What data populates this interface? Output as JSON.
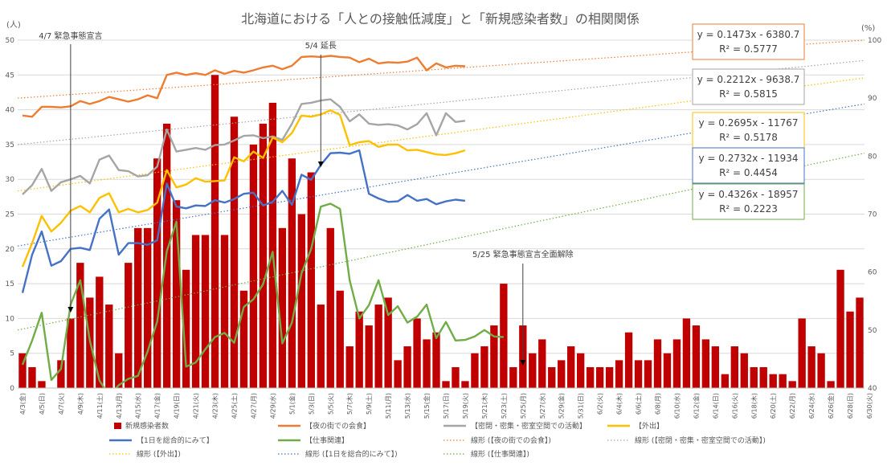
{
  "chart_data": {
    "type": "bar+line",
    "title": "北海道における「人との接触低減度」と「新規感染者数」の相関関係",
    "y_left_unit": "(人)",
    "y_right_unit": "(%)",
    "y_left_range": [
      0,
      50
    ],
    "y_left_ticks": [
      "0",
      "5",
      "10",
      "15",
      "20",
      "25",
      "30",
      "35",
      "40",
      "45",
      "50"
    ],
    "y_right_range": [
      40,
      100
    ],
    "y_right_ticks": [
      "40",
      "50",
      "60",
      "70",
      "80",
      "90",
      "100"
    ],
    "x_tick_labels": [
      "4/3(金)",
      "4/5(日)",
      "4/7(火)",
      "4/9(木)",
      "4/11(土)",
      "4/13(月)",
      "4/15(水)",
      "4/17(金)",
      "4/19(日)",
      "4/21(火)",
      "4/23(木)",
      "4/25(土)",
      "4/27(月)",
      "4/29(水)",
      "5/1(金)",
      "5/3(日)",
      "5/5(火)",
      "5/7(木)",
      "5/9(土)",
      "5/11(月)",
      "5/13(水)",
      "5/15(金)",
      "5/17(日)",
      "5/19(火)",
      "5/21(木)",
      "5/23(土)",
      "5/25(月)",
      "5/27(水)",
      "5/29(金)",
      "5/31(日)",
      "6/2(火)",
      "6/4(木)",
      "6/6(土)",
      "6/8(月)",
      "6/10(水)",
      "6/12(金)",
      "6/14(日)",
      "6/16(火)",
      "6/18(木)",
      "6/20(土)",
      "6/22(月)",
      "6/24(水)",
      "6/26(金)",
      "6/28(日)",
      "6/30(火)"
    ],
    "bars": {
      "name": "新規感染者数",
      "color": "#c00000",
      "values": [
        5,
        3,
        1,
        0,
        4,
        10,
        18,
        13,
        16,
        12,
        5,
        18,
        23,
        23,
        33,
        38,
        27,
        17,
        22,
        22,
        45,
        22,
        39,
        14,
        35,
        38,
        41,
        23,
        33,
        25,
        31,
        12,
        23,
        14,
        6,
        11,
        9,
        12,
        13,
        4,
        6,
        10,
        7,
        8,
        1,
        3,
        1,
        5,
        6,
        9,
        15,
        3,
        9,
        5,
        7,
        3,
        4,
        6,
        5,
        3,
        3,
        3,
        4,
        8,
        4,
        4,
        7,
        5,
        7,
        10,
        9,
        7,
        6,
        2,
        6,
        5,
        3,
        3,
        2,
        2,
        1,
        10,
        6,
        5,
        1,
        17,
        11,
        13
      ]
    },
    "series": [
      {
        "name": "【夜の街での会食】",
        "color": "#ed7d31",
        "values": [
          87,
          86.8,
          88.5,
          88.5,
          88.4,
          88.6,
          89.5,
          89,
          89.5,
          90.2,
          89.8,
          89.4,
          89.8,
          90.5,
          90,
          94,
          94.4,
          94,
          94.3,
          94,
          94.8,
          94.2,
          94.7,
          94.4,
          94.8,
          95.3,
          95.6,
          95,
          95.6,
          97.1,
          97.2,
          97.1,
          97.3,
          97.1,
          97,
          96.2,
          96.8,
          96,
          96.2,
          96.1,
          96.3,
          97,
          94.8,
          96,
          95.3,
          95.6,
          95.5
        ]
      },
      {
        "name": "【密閉・密集・密室空間での活動】",
        "color": "#a5a5a5",
        "values": [
          73.4,
          75,
          77.8,
          74,
          75.5,
          76,
          76.6,
          75.3,
          79.4,
          80.1,
          77.6,
          77.4,
          76.5,
          76.7,
          78.2,
          84.6,
          80.8,
          81.1,
          81.4,
          81.1,
          81.9,
          82,
          82.7,
          83.5,
          83.6,
          83.1,
          83.4,
          82.8,
          85.6,
          89,
          89.2,
          89.6,
          89.8,
          88.5,
          86,
          87.2,
          85.6,
          85.4,
          85.5,
          85.3,
          84.6,
          85.5,
          87.4,
          83.6,
          87.4,
          85.9,
          86.1
        ]
      },
      {
        "name": "【外出】",
        "color": "#ffc000",
        "values": [
          60.9,
          65,
          69.7,
          67,
          68.5,
          70.6,
          71.4,
          70.3,
          72.8,
          73.6,
          70.3,
          70.9,
          70.3,
          70.7,
          72,
          77.6,
          74.6,
          75.1,
          76.2,
          75.6,
          75.7,
          75.8,
          79.8,
          79.1,
          80.8,
          79.7,
          83.2,
          82.4,
          84,
          87,
          86.8,
          87.2,
          87.9,
          87.1,
          81.9,
          82.4,
          82.6,
          81.6,
          82,
          82,
          81,
          81.1,
          80.7,
          80.3,
          80.2,
          80.5,
          81
        ]
      },
      {
        "name": "【1日を総合的にみて】",
        "color": "#4472c4",
        "values": [
          56.4,
          63,
          67,
          61.1,
          61.9,
          64,
          64.2,
          63.8,
          69.2,
          70.8,
          63,
          65,
          65,
          64.7,
          65.5,
          75.3,
          71.3,
          71,
          71.5,
          71.4,
          72.4,
          72,
          72.6,
          73.5,
          73.7,
          71.5,
          72.1,
          74,
          71.6,
          76.8,
          75.9,
          78.5,
          80.5,
          80.6,
          80.4,
          81,
          73.5,
          72.7,
          72.1,
          72.2,
          73.3,
          72.3,
          72.6,
          71.7,
          72.2,
          72.5,
          72.3
        ]
      },
      {
        "name": "【仕事関連】",
        "color": "#70ad47",
        "values": [
          44,
          48.2,
          53,
          41.4,
          43.3,
          54.4,
          58.6,
          48.2,
          41.3,
          38.7,
          40.5,
          41.6,
          42.1,
          46.3,
          51.5,
          63.6,
          68.7,
          43.7,
          44.4,
          46.7,
          48.8,
          49.5,
          47.8,
          54,
          55.3,
          57.9,
          63.5,
          47.7,
          51.3,
          59.8,
          64,
          71.3,
          71.8,
          70.9,
          58.6,
          52,
          54.3,
          58.6,
          52.6,
          54.1,
          51.3,
          52.3,
          54.4,
          48.6,
          51.4,
          48.2,
          48.3,
          48.9,
          50,
          48.9,
          48.8
        ]
      }
    ],
    "trendlines": [
      {
        "name": "線形 (【夜の街での会食】)",
        "color": "#ed7d31",
        "equation": "y = 0.1473x - 6380.7",
        "r2": "R² = 0.5777",
        "start": 90,
        "end": 100
      },
      {
        "name": "線形 (【密閉・密集・密室空間での活動】)",
        "color": "#a5a5a5",
        "equation": "y = 0.2212x - 9638.7",
        "r2": "R² = 0.5815",
        "start": 82,
        "end": 96.5
      },
      {
        "name": "線形 (【外出】)",
        "color": "#ffc000",
        "equation": "y = 0.2695x - 11767",
        "r2": "R² = 0.5178",
        "start": 74,
        "end": 93.5
      },
      {
        "name": "線形 (【1日を総合的にみて】)",
        "color": "#4472c4",
        "equation": "y = 0.2732x - 11934",
        "r2": "R² = 0.4454",
        "start": 64.5,
        "end": 89
      },
      {
        "name": "線形 (【仕事関連】)",
        "color": "#70ad47",
        "equation": "y = 0.4326x - 18957",
        "r2": "R² = 0.2223",
        "start": 50,
        "end": 80.5
      }
    ],
    "annotations": [
      {
        "text": "4/7 緊急事態宣言",
        "index": 5
      },
      {
        "text": "5/4 延長",
        "index": 31
      },
      {
        "text": "5/25 緊急事態宣言全面解除",
        "index": 52
      }
    ],
    "legend_placement": "bottom"
  }
}
